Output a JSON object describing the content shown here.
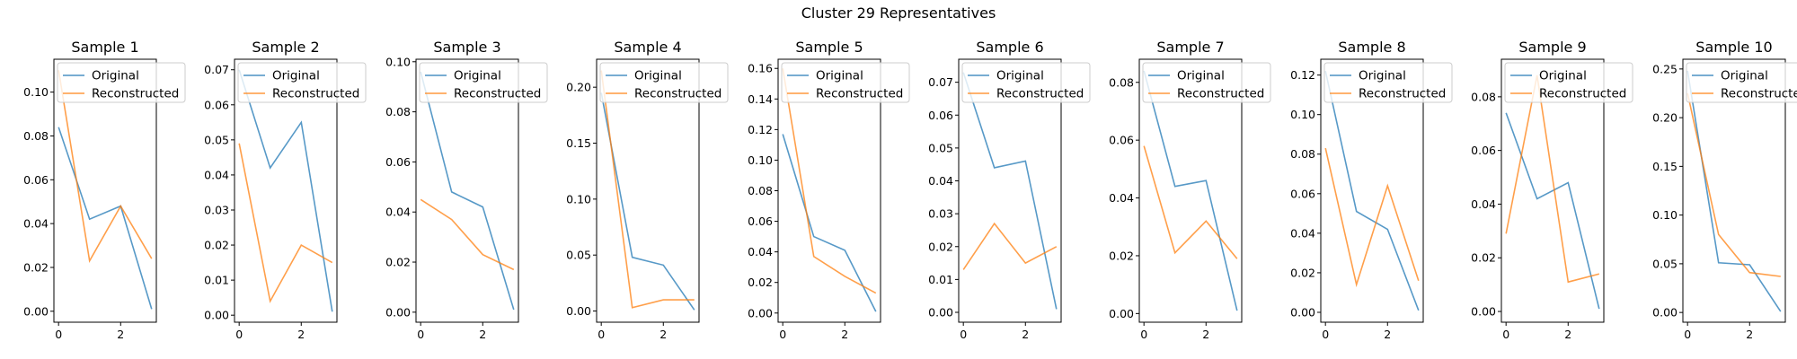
{
  "figure": {
    "suptitle": "Cluster 29 Representatives",
    "colors": {
      "original": "#1f77b4",
      "reconstructed": "#ff7f0e"
    },
    "legend_labels": [
      "Original",
      "Reconstructed"
    ],
    "legend_position": "upper-left"
  },
  "chart_data": [
    {
      "type": "line",
      "title": "Sample 1",
      "x": [
        0,
        1,
        2,
        3
      ],
      "xticks": [
        0,
        2
      ],
      "ylim": [
        -0.005,
        0.115
      ],
      "yticks": [
        0.0,
        0.02,
        0.04,
        0.06,
        0.08,
        0.1
      ],
      "ytick_labels": [
        "0.00",
        "0.02",
        "0.04",
        "0.06",
        "0.08",
        "0.10"
      ],
      "series": [
        {
          "name": "Original",
          "values": [
            0.084,
            0.042,
            0.048,
            0.001
          ]
        },
        {
          "name": "Reconstructed",
          "values": [
            0.11,
            0.023,
            0.048,
            0.024
          ]
        }
      ]
    },
    {
      "type": "line",
      "title": "Sample 2",
      "x": [
        0,
        1,
        2,
        3
      ],
      "xticks": [
        0,
        2
      ],
      "ylim": [
        -0.002,
        0.073
      ],
      "yticks": [
        0.0,
        0.01,
        0.02,
        0.03,
        0.04,
        0.05,
        0.06,
        0.07
      ],
      "ytick_labels": [
        "0.00",
        "0.01",
        "0.02",
        "0.03",
        "0.04",
        "0.05",
        "0.06",
        "0.07"
      ],
      "series": [
        {
          "name": "Original",
          "values": [
            0.07,
            0.042,
            0.055,
            0.001
          ]
        },
        {
          "name": "Reconstructed",
          "values": [
            0.049,
            0.004,
            0.02,
            0.015
          ]
        }
      ]
    },
    {
      "type": "line",
      "title": "Sample 3",
      "x": [
        0,
        1,
        2,
        3
      ],
      "xticks": [
        0,
        2
      ],
      "ylim": [
        -0.004,
        0.101
      ],
      "yticks": [
        0.0,
        0.02,
        0.04,
        0.06,
        0.08,
        0.1
      ],
      "ytick_labels": [
        "0.00",
        "0.02",
        "0.04",
        "0.06",
        "0.08",
        "0.10"
      ],
      "series": [
        {
          "name": "Original",
          "values": [
            0.096,
            0.048,
            0.042,
            0.001
          ]
        },
        {
          "name": "Reconstructed",
          "values": [
            0.045,
            0.037,
            0.023,
            0.017
          ]
        }
      ]
    },
    {
      "type": "line",
      "title": "Sample 4",
      "x": [
        0,
        1,
        2,
        3
      ],
      "xticks": [
        0,
        2
      ],
      "ylim": [
        -0.01,
        0.225
      ],
      "yticks": [
        0.0,
        0.05,
        0.1,
        0.15,
        0.2
      ],
      "ytick_labels": [
        "0.00",
        "0.05",
        "0.10",
        "0.15",
        "0.20"
      ],
      "series": [
        {
          "name": "Original",
          "values": [
            0.195,
            0.048,
            0.041,
            0.001
          ]
        },
        {
          "name": "Reconstructed",
          "values": [
            0.215,
            0.003,
            0.01,
            0.01
          ]
        }
      ]
    },
    {
      "type": "line",
      "title": "Sample 5",
      "x": [
        0,
        1,
        2,
        3
      ],
      "xticks": [
        0,
        2
      ],
      "ylim": [
        -0.006,
        0.166
      ],
      "yticks": [
        0.0,
        0.02,
        0.04,
        0.06,
        0.08,
        0.1,
        0.12,
        0.14,
        0.16
      ],
      "ytick_labels": [
        "0.00",
        "0.02",
        "0.04",
        "0.06",
        "0.08",
        "0.10",
        "0.12",
        "0.14",
        "0.16"
      ],
      "series": [
        {
          "name": "Original",
          "values": [
            0.117,
            0.05,
            0.041,
            0.001
          ]
        },
        {
          "name": "Reconstructed",
          "values": [
            0.16,
            0.037,
            0.024,
            0.013
          ]
        }
      ]
    },
    {
      "type": "line",
      "title": "Sample 6",
      "x": [
        0,
        1,
        2,
        3
      ],
      "xticks": [
        0,
        2
      ],
      "ylim": [
        -0.003,
        0.077
      ],
      "yticks": [
        0.0,
        0.01,
        0.02,
        0.03,
        0.04,
        0.05,
        0.06,
        0.07
      ],
      "ytick_labels": [
        "0.00",
        "0.01",
        "0.02",
        "0.03",
        "0.04",
        "0.05",
        "0.06",
        "0.07"
      ],
      "series": [
        {
          "name": "Original",
          "values": [
            0.073,
            0.044,
            0.046,
            0.001
          ]
        },
        {
          "name": "Reconstructed",
          "values": [
            0.013,
            0.027,
            0.015,
            0.02
          ]
        }
      ]
    },
    {
      "type": "line",
      "title": "Sample 7",
      "x": [
        0,
        1,
        2,
        3
      ],
      "xticks": [
        0,
        2
      ],
      "ylim": [
        -0.003,
        0.088
      ],
      "yticks": [
        0.0,
        0.02,
        0.04,
        0.06,
        0.08
      ],
      "ytick_labels": [
        "0.00",
        "0.02",
        "0.04",
        "0.06",
        "0.08"
      ],
      "series": [
        {
          "name": "Original",
          "values": [
            0.084,
            0.044,
            0.046,
            0.001
          ]
        },
        {
          "name": "Reconstructed",
          "values": [
            0.058,
            0.021,
            0.032,
            0.019
          ]
        }
      ]
    },
    {
      "type": "line",
      "title": "Sample 8",
      "x": [
        0,
        1,
        2,
        3
      ],
      "xticks": [
        0,
        2
      ],
      "ylim": [
        -0.005,
        0.128
      ],
      "yticks": [
        0.0,
        0.02,
        0.04,
        0.06,
        0.08,
        0.1,
        0.12
      ],
      "ytick_labels": [
        "0.00",
        "0.02",
        "0.04",
        "0.06",
        "0.08",
        "0.10",
        "0.12"
      ],
      "series": [
        {
          "name": "Original",
          "values": [
            0.122,
            0.051,
            0.042,
            0.001
          ]
        },
        {
          "name": "Reconstructed",
          "values": [
            0.083,
            0.014,
            0.064,
            0.016
          ]
        }
      ]
    },
    {
      "type": "line",
      "title": "Sample 9",
      "x": [
        0,
        1,
        2,
        3
      ],
      "xticks": [
        0,
        2
      ],
      "ylim": [
        -0.004,
        0.094
      ],
      "yticks": [
        0.0,
        0.02,
        0.04,
        0.06,
        0.08
      ],
      "ytick_labels": [
        "0.00",
        "0.02",
        "0.04",
        "0.06",
        "0.08"
      ],
      "series": [
        {
          "name": "Original",
          "values": [
            0.074,
            0.042,
            0.048,
            0.001
          ]
        },
        {
          "name": "Reconstructed",
          "values": [
            0.029,
            0.088,
            0.011,
            0.014
          ]
        }
      ]
    },
    {
      "type": "line",
      "title": "Sample 10",
      "x": [
        0,
        1,
        2,
        3
      ],
      "xticks": [
        0,
        2
      ],
      "ylim": [
        -0.01,
        0.26
      ],
      "yticks": [
        0.0,
        0.05,
        0.1,
        0.15,
        0.2,
        0.25
      ],
      "ytick_labels": [
        "0.00",
        "0.05",
        "0.10",
        "0.15",
        "0.20",
        "0.25"
      ],
      "series": [
        {
          "name": "Original",
          "values": [
            0.248,
            0.051,
            0.049,
            0.001
          ]
        },
        {
          "name": "Reconstructed",
          "values": [
            0.225,
            0.08,
            0.041,
            0.037
          ]
        }
      ]
    }
  ]
}
